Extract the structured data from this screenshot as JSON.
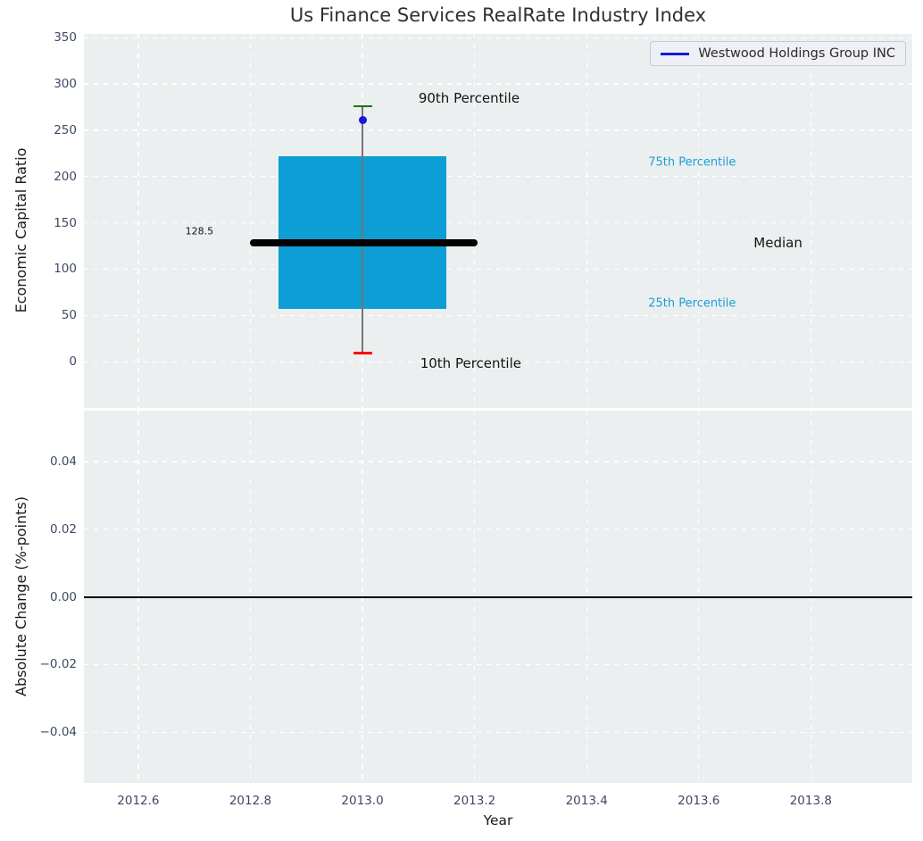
{
  "title": "Us Finance Services RealRate Industry Index",
  "legend": {
    "label": "Westwood Holdings Group INC"
  },
  "colors": {
    "axes_bg": "#ebeff0",
    "grid": "#ffffff",
    "box_fill": "#0d9ed5",
    "median_line": "#000000",
    "whisker": "#757575",
    "cap_high_green": "#067d06",
    "cap_low_red": "#ff0000",
    "series_blue": "#1717dd",
    "tick_label": "#3d4a63",
    "title_color": "#303030",
    "text_dark": "#141414",
    "percentile_blue": "#1d9ed6",
    "zero_line": "#000000"
  },
  "x_axis": {
    "label": "Year",
    "xlim": [
      2012.503,
      2013.981
    ],
    "tick_values": [
      2012.6,
      2012.8,
      2013.0,
      2013.2,
      2013.4,
      2013.6,
      2013.8
    ],
    "tick_labels": [
      "2012.6",
      "2012.8",
      "2013.0",
      "2013.2",
      "2013.4",
      "2013.6",
      "2013.8"
    ]
  },
  "chart_data": [
    {
      "type": "boxplot",
      "panel": "economic-capital-ratio",
      "ylabel": "Economic Capital Ratio",
      "ylim": [
        -50,
        354
      ],
      "ytick_values": [
        0,
        50,
        100,
        150,
        200,
        250,
        300,
        350
      ],
      "ytick_labels": [
        "0",
        "50",
        "100",
        "150",
        "200",
        "250",
        "300",
        "350"
      ],
      "box": {
        "x_center": 2013.0,
        "x_left": 2012.85,
        "x_right": 2013.15,
        "q1": 57,
        "q3": 222,
        "median": 128.5,
        "whisker_high_90th": 276,
        "whisker_low_10th": 9
      },
      "median_line": {
        "y": 128.5,
        "x_start": 2012.8,
        "x_end": 2013.205
      },
      "company_point": {
        "label": "Westwood Holdings Group INC",
        "x": 2013.0,
        "y": 261
      },
      "annotations": [
        {
          "text": "128.5",
          "x": 2012.684,
          "y": 141,
          "size": 11,
          "color_key": "text_dark"
        },
        {
          "text": "90th Percentile",
          "x": 2013.1,
          "y": 285,
          "size": 15,
          "color_key": "text_dark"
        },
        {
          "text": "10th Percentile",
          "x": 2013.103,
          "y": -2,
          "size": 15,
          "color_key": "text_dark"
        },
        {
          "text": "75th Percentile",
          "x": 2013.51,
          "y": 215,
          "size": 13,
          "color_key": "percentile_blue"
        },
        {
          "text": "25th Percentile",
          "x": 2013.51,
          "y": 63,
          "size": 13,
          "color_key": "percentile_blue"
        },
        {
          "text": "Median",
          "x": 2013.698,
          "y": 128.5,
          "size": 15,
          "color_key": "text_dark"
        }
      ]
    },
    {
      "type": "line",
      "panel": "absolute-change",
      "ylabel": "Absolute Change (%-points)",
      "ylim": [
        -0.055,
        0.055
      ],
      "ytick_values": [
        0.04,
        0.02,
        0.0,
        -0.02,
        -0.04
      ],
      "ytick_labels": [
        "0.04",
        "0.02",
        "0.00",
        "−0.02",
        "−0.04"
      ],
      "zero_line": 0.0
    }
  ]
}
